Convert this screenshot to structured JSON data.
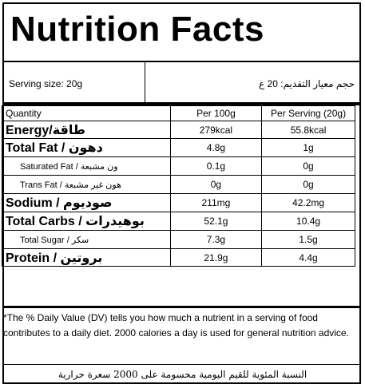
{
  "title": "Nutrition Facts",
  "serving": {
    "en": "Serving size: 20g",
    "ar": "حجم معيار التقديم: 20 غ"
  },
  "columns": {
    "quantity": "Quantity",
    "per100": "Per 100g",
    "perServing": "Per Serving (20g)"
  },
  "rows": [
    {
      "label": "Energy/طاقة",
      "per100": "279kcal",
      "perServing": "55.8kcal"
    },
    {
      "label": "Total Fat / دهون",
      "per100": "4.8g",
      "perServing": "1g"
    },
    {
      "label": "Saturated Fat / ون مشبعة",
      "per100": "0.1g",
      "perServing": "0g"
    },
    {
      "label": "Trans Fat / هون غير مشبعة",
      "per100": "0g",
      "perServing": "0g"
    },
    {
      "label": "Sodium / صوديوم",
      "per100": "211mg",
      "perServing": "42.2mg"
    },
    {
      "label": "Total Carbs / بوهيدرات",
      "per100": "52.1g",
      "perServing": "10.4g"
    },
    {
      "label": "Total Sugar / سكر",
      "per100": "7.3g",
      "perServing": "1.5g"
    },
    {
      "label": "Protein / بروتين",
      "per100": "21.9g",
      "perServing": "4.4g"
    }
  ],
  "footnote": "*The % Daily Value (DV) tells you how much a nutrient in a serving of food contributes to a daily diet. 2000 calories a day is used for general nutrition advice.",
  "footnote_ar": "النسبة المئوية للقيم اليومية محسومة على 2000 سعرة حرارية"
}
